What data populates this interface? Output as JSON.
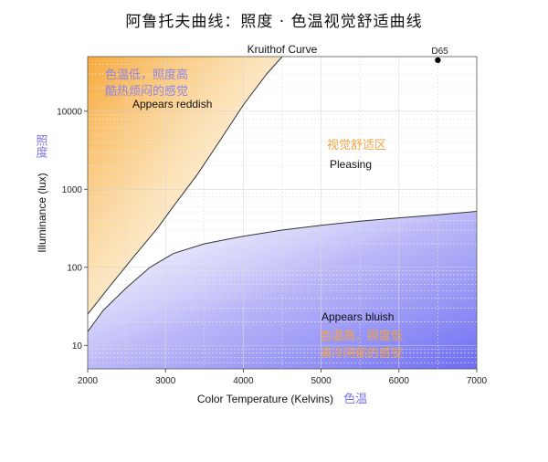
{
  "main_title": "阿鲁托夫曲线：照度 · 色温视觉舒适曲线",
  "chart_data": {
    "type": "area",
    "title": "Kruithof Curve",
    "xlabel": "Color Temperature (Kelvins)",
    "xlabel_cn": "色温",
    "ylabel": "Illuminance (lux)",
    "ylabel_cn": "照度",
    "xlim": [
      2000,
      7000
    ],
    "ylim": [
      5,
      50000
    ],
    "yscale": "log",
    "grid": true,
    "x_ticks": [
      2000,
      3000,
      4000,
      5000,
      6000,
      7000
    ],
    "y_ticks": [
      10,
      100,
      1000,
      10000
    ],
    "series": [
      {
        "x": [
          2000,
          2300,
          2600,
          2900,
          3100,
          3400,
          3700,
          4000,
          4300,
          4500
        ],
        "y": [
          25,
          60,
          140,
          320,
          600,
          1500,
          4200,
          12000,
          30000,
          50000
        ]
      },
      {
        "x": [
          2000,
          2200,
          2500,
          2800,
          3100,
          3500,
          4000,
          4500,
          5000,
          5500,
          6000,
          6500,
          7000
        ],
        "y": [
          15,
          28,
          55,
          100,
          150,
          200,
          250,
          300,
          345,
          390,
          430,
          470,
          520
        ]
      }
    ],
    "regions": [
      {
        "label": "Appears reddish",
        "label_cn_1": "色温低，照度高",
        "label_cn_2": "酷热烦闷的感觉",
        "color": "#f7a530"
      },
      {
        "label": "Pleasing",
        "label_cn": "视觉舒适区",
        "color": "#ffffff"
      },
      {
        "label": "Appears bluish",
        "label_cn_1": "色温高，照度低",
        "label_cn_2": "清冷阴郁的感觉",
        "color": "#7b74f0"
      }
    ],
    "marker": {
      "label": "D65",
      "x": 6500,
      "y": 45000
    }
  }
}
